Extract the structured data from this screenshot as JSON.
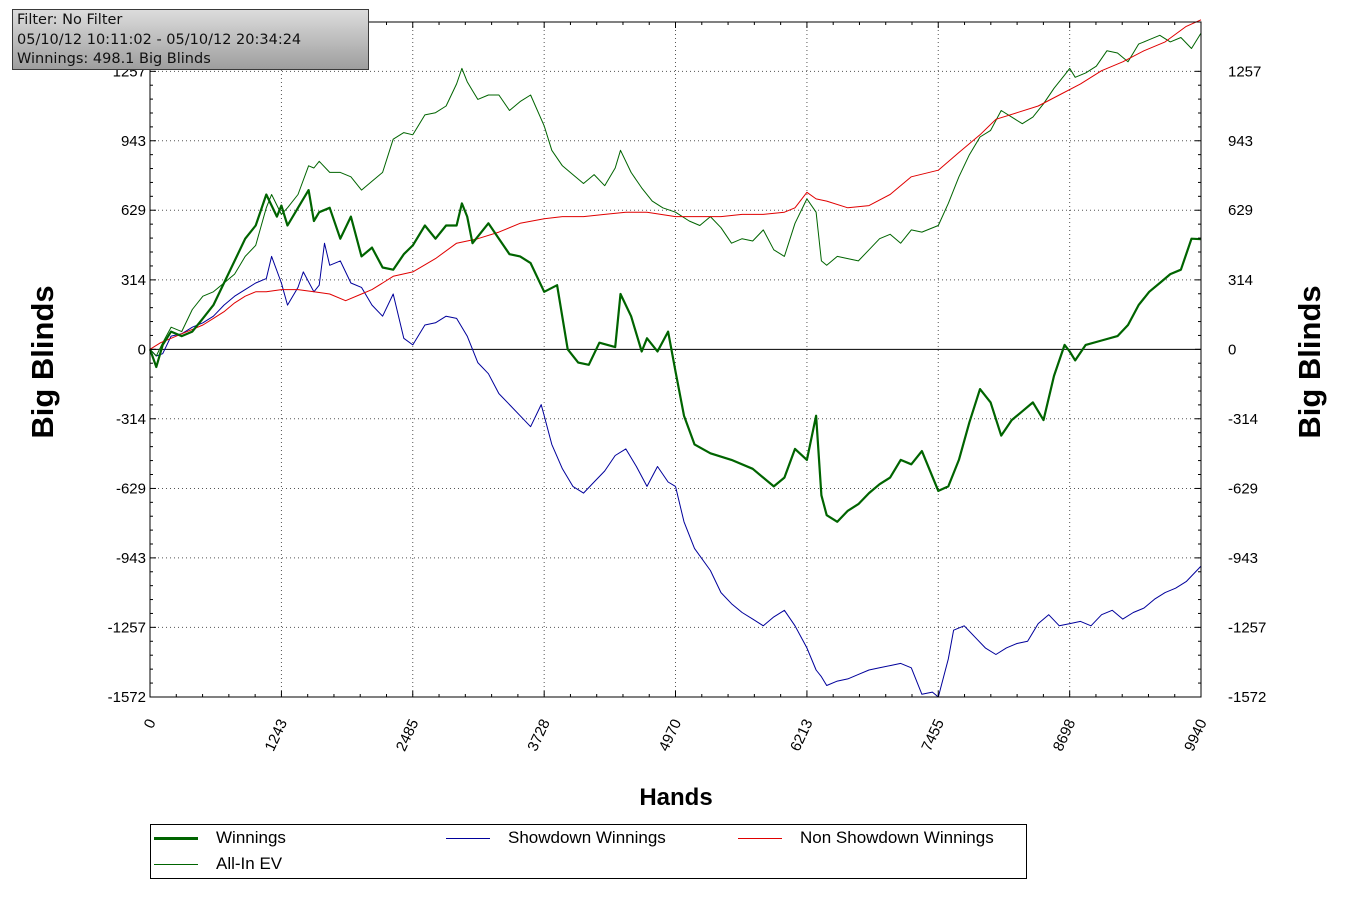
{
  "info": {
    "filter": "Filter: No Filter",
    "date_range": "05/10/12 10:11:02 - 05/10/12 20:34:24",
    "winnings": "Winnings: 498.1 Big Blinds"
  },
  "legend": {
    "items": [
      {
        "label": "Winnings",
        "color": "#006400"
      },
      {
        "label": "Showdown Winnings",
        "color": "#00009b"
      },
      {
        "label": "Non Showdown Winnings",
        "color": "#e00000"
      },
      {
        "label": "All-In EV",
        "color": "#006400"
      }
    ]
  },
  "chart_data": {
    "type": "line",
    "xlabel": "Hands",
    "ylabel": "Big Blinds",
    "xlim": [
      0,
      9940
    ],
    "ylim": [
      -1572,
      1480
    ],
    "x_ticks": [
      "0",
      "1243",
      "2485",
      "3728",
      "4970",
      "6213",
      "7455",
      "8698",
      "9940"
    ],
    "y_ticks": [
      "1257",
      "943",
      "629",
      "314",
      "0",
      "-314",
      "-629",
      "-943",
      "-1257",
      "-1572"
    ],
    "grid": true,
    "legend_position": "bottom",
    "series": [
      {
        "name": "Winnings",
        "color": "#006400",
        "x": [
          0,
          60,
          120,
          200,
          300,
          400,
          500,
          600,
          700,
          800,
          900,
          1000,
          1100,
          1200,
          1243,
          1300,
          1400,
          1500,
          1550,
          1600,
          1700,
          1800,
          1900,
          2000,
          2100,
          2200,
          2300,
          2400,
          2485,
          2600,
          2700,
          2800,
          2900,
          2950,
          3000,
          3050,
          3200,
          3300,
          3400,
          3500,
          3600,
          3728,
          3850,
          3950,
          4050,
          4150,
          4250,
          4400,
          4450,
          4550,
          4650,
          4700,
          4800,
          4900,
          4970,
          5050,
          5150,
          5300,
          5500,
          5700,
          5900,
          6000,
          6100,
          6213,
          6300,
          6350,
          6400,
          6500,
          6600,
          6700,
          6800,
          6900,
          7000,
          7100,
          7200,
          7300,
          7455,
          7550,
          7650,
          7750,
          7850,
          7950,
          8050,
          8150,
          8250,
          8350,
          8450,
          8550,
          8650,
          8698,
          8750,
          8850,
          9000,
          9150,
          9250,
          9350,
          9450,
          9550,
          9650,
          9750,
          9850,
          9940
        ],
        "y": [
          0,
          -80,
          20,
          80,
          60,
          80,
          140,
          200,
          300,
          400,
          500,
          560,
          700,
          600,
          650,
          560,
          640,
          720,
          580,
          620,
          640,
          500,
          600,
          420,
          460,
          370,
          360,
          430,
          470,
          560,
          500,
          560,
          560,
          660,
          600,
          480,
          570,
          500,
          430,
          420,
          390,
          260,
          290,
          0,
          -60,
          -70,
          30,
          10,
          250,
          150,
          -10,
          50,
          -10,
          80,
          -100,
          -300,
          -430,
          -470,
          -500,
          -540,
          -620,
          -580,
          -450,
          -500,
          -300,
          -660,
          -750,
          -780,
          -730,
          -700,
          -650,
          -610,
          -580,
          -500,
          -520,
          -460,
          -640,
          -620,
          -500,
          -330,
          -180,
          -240,
          -390,
          -320,
          -280,
          -240,
          -320,
          -120,
          20,
          -10,
          -50,
          20,
          40,
          60,
          110,
          200,
          260,
          300,
          340,
          360,
          500,
          498
        ]
      },
      {
        "name": "Showdown Winnings",
        "color": "#00009b",
        "x": [
          0,
          60,
          120,
          200,
          300,
          400,
          500,
          600,
          700,
          800,
          900,
          1000,
          1100,
          1150,
          1243,
          1300,
          1400,
          1450,
          1550,
          1600,
          1650,
          1700,
          1800,
          1900,
          2000,
          2100,
          2200,
          2300,
          2400,
          2485,
          2600,
          2700,
          2800,
          2900,
          3000,
          3100,
          3200,
          3300,
          3400,
          3500,
          3600,
          3700,
          3728,
          3800,
          3900,
          4000,
          4100,
          4200,
          4300,
          4400,
          4500,
          4600,
          4700,
          4800,
          4900,
          4970,
          5050,
          5150,
          5300,
          5400,
          5500,
          5600,
          5700,
          5800,
          5900,
          6000,
          6100,
          6213,
          6300,
          6350,
          6400,
          6500,
          6600,
          6700,
          6800,
          6900,
          7000,
          7100,
          7200,
          7300,
          7400,
          7455,
          7550,
          7600,
          7700,
          7800,
          7900,
          8000,
          8100,
          8200,
          8300,
          8400,
          8500,
          8600,
          8700,
          8800,
          8900,
          9000,
          9100,
          9200,
          9300,
          9400,
          9500,
          9600,
          9700,
          9800,
          9940
        ],
        "y": [
          0,
          -30,
          -20,
          60,
          70,
          100,
          120,
          150,
          200,
          240,
          270,
          300,
          320,
          420,
          300,
          200,
          280,
          350,
          260,
          290,
          480,
          380,
          400,
          300,
          280,
          200,
          150,
          250,
          50,
          20,
          110,
          120,
          150,
          140,
          60,
          -60,
          -110,
          -200,
          -250,
          -300,
          -350,
          -250,
          -300,
          -430,
          -540,
          -620,
          -650,
          -600,
          -550,
          -480,
          -450,
          -530,
          -620,
          -530,
          -600,
          -620,
          -780,
          -900,
          -1000,
          -1100,
          -1150,
          -1190,
          -1220,
          -1250,
          -1210,
          -1180,
          -1250,
          -1350,
          -1450,
          -1480,
          -1520,
          -1500,
          -1490,
          -1470,
          -1450,
          -1440,
          -1430,
          -1420,
          -1440,
          -1560,
          -1550,
          -1572,
          -1400,
          -1270,
          -1250,
          -1300,
          -1350,
          -1380,
          -1350,
          -1330,
          -1320,
          -1240,
          -1200,
          -1250,
          -1240,
          -1230,
          -1250,
          -1200,
          -1180,
          -1220,
          -1190,
          -1170,
          -1130,
          -1100,
          -1080,
          -1050,
          -980
        ]
      },
      {
        "name": "Non Showdown Winnings",
        "color": "#e00000",
        "x": [
          0,
          100,
          200,
          300,
          400,
          500,
          600,
          700,
          800,
          900,
          1000,
          1100,
          1243,
          1400,
          1550,
          1700,
          1850,
          2000,
          2100,
          2200,
          2300,
          2485,
          2700,
          2900,
          3100,
          3300,
          3500,
          3728,
          3900,
          4100,
          4300,
          4500,
          4700,
          4970,
          5200,
          5400,
          5600,
          5800,
          6000,
          6100,
          6213,
          6300,
          6400,
          6600,
          6800,
          7000,
          7200,
          7455,
          7650,
          7850,
          8000,
          8200,
          8400,
          8600,
          8800,
          9000,
          9200,
          9400,
          9600,
          9800,
          9940
        ],
        "y": [
          0,
          30,
          50,
          70,
          90,
          110,
          140,
          170,
          210,
          240,
          260,
          260,
          270,
          270,
          260,
          250,
          220,
          250,
          270,
          300,
          330,
          350,
          410,
          480,
          500,
          530,
          570,
          590,
          600,
          600,
          610,
          620,
          620,
          600,
          600,
          600,
          610,
          610,
          620,
          640,
          710,
          680,
          670,
          640,
          650,
          700,
          780,
          810,
          890,
          970,
          1040,
          1070,
          1100,
          1150,
          1200,
          1260,
          1300,
          1350,
          1390,
          1460,
          1490
        ]
      },
      {
        "name": "All-In EV",
        "color": "#006400",
        "x": [
          0,
          60,
          120,
          200,
          300,
          400,
          500,
          600,
          700,
          800,
          900,
          1000,
          1100,
          1150,
          1243,
          1300,
          1400,
          1500,
          1550,
          1600,
          1700,
          1800,
          1900,
          2000,
          2100,
          2200,
          2300,
          2400,
          2485,
          2600,
          2700,
          2800,
          2900,
          2950,
          3000,
          3050,
          3100,
          3200,
          3300,
          3400,
          3500,
          3600,
          3728,
          3800,
          3900,
          4000,
          4100,
          4200,
          4300,
          4400,
          4450,
          4550,
          4650,
          4750,
          4850,
          4970,
          5100,
          5200,
          5300,
          5400,
          5500,
          5600,
          5700,
          5800,
          5900,
          6000,
          6100,
          6213,
          6300,
          6350,
          6400,
          6500,
          6600,
          6700,
          6800,
          6900,
          7000,
          7100,
          7200,
          7300,
          7455,
          7550,
          7650,
          7750,
          7850,
          7950,
          8050,
          8150,
          8250,
          8350,
          8450,
          8550,
          8650,
          8698,
          8750,
          8850,
          8950,
          9050,
          9150,
          9250,
          9350,
          9450,
          9550,
          9650,
          9750,
          9850,
          9940
        ],
        "y": [
          0,
          -30,
          30,
          100,
          80,
          180,
          240,
          260,
          300,
          340,
          420,
          470,
          640,
          700,
          610,
          640,
          700,
          830,
          820,
          850,
          800,
          800,
          780,
          720,
          760,
          800,
          950,
          980,
          970,
          1060,
          1070,
          1100,
          1200,
          1270,
          1210,
          1170,
          1130,
          1150,
          1150,
          1080,
          1120,
          1150,
          1010,
          900,
          830,
          790,
          750,
          790,
          740,
          820,
          900,
          800,
          730,
          670,
          640,
          620,
          580,
          560,
          600,
          550,
          480,
          500,
          490,
          540,
          450,
          420,
          570,
          680,
          620,
          400,
          380,
          420,
          410,
          400,
          450,
          500,
          520,
          480,
          540,
          530,
          560,
          660,
          780,
          880,
          960,
          990,
          1080,
          1050,
          1020,
          1050,
          1110,
          1180,
          1240,
          1270,
          1230,
          1250,
          1280,
          1350,
          1340,
          1300,
          1380,
          1400,
          1420,
          1390,
          1410,
          1360,
          1430
        ]
      }
    ]
  }
}
